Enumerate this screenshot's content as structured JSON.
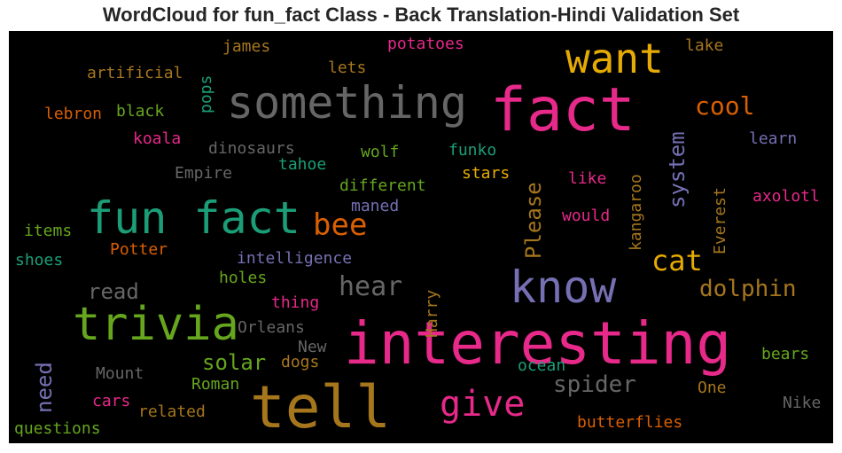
{
  "chart_data": {
    "type": "wordcloud",
    "title": "WordCloud for fun_fact Class - Back Translation-Hindi Validation Set",
    "background": "#000000",
    "words": [
      {
        "text": "fact",
        "color": "#e7298a"
      },
      {
        "text": "interesting",
        "color": "#e7298a"
      },
      {
        "text": "tell",
        "color": "#a6761d"
      },
      {
        "text": "fun fact",
        "color": "#1b9e77"
      },
      {
        "text": "trivia",
        "color": "#66a61e"
      },
      {
        "text": "something",
        "color": "#666666"
      },
      {
        "text": "know",
        "color": "#7570b3"
      },
      {
        "text": "want",
        "color": "#e6ab02"
      },
      {
        "text": "give",
        "color": "#e7298a"
      },
      {
        "text": "bee",
        "color": "#d95f02"
      },
      {
        "text": "cat",
        "color": "#e6ab02"
      },
      {
        "text": "hear",
        "color": "#666666"
      },
      {
        "text": "cool",
        "color": "#d95f02"
      },
      {
        "text": "dolphin",
        "color": "#a6761d"
      },
      {
        "text": "spider",
        "color": "#666666"
      },
      {
        "text": "solar",
        "color": "#66a61e"
      },
      {
        "text": "read",
        "color": "#666666"
      },
      {
        "text": "system",
        "color": "#7570b3"
      },
      {
        "text": "Please",
        "color": "#a6761d"
      },
      {
        "text": "need",
        "color": "#7570b3"
      },
      {
        "text": "potatoes",
        "color": "#e7298a"
      },
      {
        "text": "james",
        "color": "#a6761d"
      },
      {
        "text": "lake",
        "color": "#a6761d"
      },
      {
        "text": "artificial",
        "color": "#a6761d"
      },
      {
        "text": "pops",
        "color": "#1b9e77"
      },
      {
        "text": "lets",
        "color": "#a6761d"
      },
      {
        "text": "lebron",
        "color": "#d95f02"
      },
      {
        "text": "black",
        "color": "#66a61e"
      },
      {
        "text": "koala",
        "color": "#e7298a"
      },
      {
        "text": "dinosaurs",
        "color": "#666666"
      },
      {
        "text": "wolf",
        "color": "#66a61e"
      },
      {
        "text": "funko",
        "color": "#1b9e77"
      },
      {
        "text": "learn",
        "color": "#7570b3"
      },
      {
        "text": "tahoe",
        "color": "#1b9e77"
      },
      {
        "text": "Empire",
        "color": "#666666"
      },
      {
        "text": "stars",
        "color": "#e6ab02"
      },
      {
        "text": "like",
        "color": "#e7298a"
      },
      {
        "text": "kangaroo",
        "color": "#a6761d"
      },
      {
        "text": "Everest",
        "color": "#a6761d"
      },
      {
        "text": "different",
        "color": "#66a61e"
      },
      {
        "text": "axolotl",
        "color": "#e7298a"
      },
      {
        "text": "would",
        "color": "#e7298a"
      },
      {
        "text": "maned",
        "color": "#7570b3"
      },
      {
        "text": "items",
        "color": "#66a61e"
      },
      {
        "text": "Potter",
        "color": "#d95f02"
      },
      {
        "text": "shoes",
        "color": "#1b9e77"
      },
      {
        "text": "intelligence",
        "color": "#7570b3"
      },
      {
        "text": "holes",
        "color": "#66a61e"
      },
      {
        "text": "Harry",
        "color": "#a6761d"
      },
      {
        "text": "thing",
        "color": "#e7298a"
      },
      {
        "text": "Orleans",
        "color": "#666666"
      },
      {
        "text": "New",
        "color": "#666666"
      },
      {
        "text": "Mount",
        "color": "#666666"
      },
      {
        "text": "dogs",
        "color": "#a6761d"
      },
      {
        "text": "ocean",
        "color": "#1b9e77"
      },
      {
        "text": "bears",
        "color": "#66a61e"
      },
      {
        "text": "Roman",
        "color": "#66a61e"
      },
      {
        "text": "One",
        "color": "#a6761d"
      },
      {
        "text": "cars",
        "color": "#e7298a"
      },
      {
        "text": "related",
        "color": "#a6761d"
      },
      {
        "text": "Nike",
        "color": "#666666"
      },
      {
        "text": "butterflies",
        "color": "#d95f02"
      },
      {
        "text": "questions",
        "color": "#66a61e"
      }
    ]
  }
}
